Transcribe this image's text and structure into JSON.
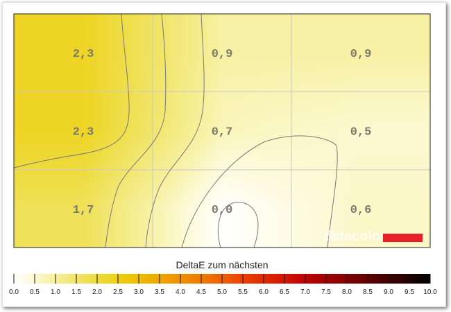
{
  "chart_data": {
    "type": "heatmap",
    "title": "DeltaE zum nächsten",
    "rows": 3,
    "cols": 3,
    "values": [
      [
        2.3,
        0.9,
        0.9
      ],
      [
        2.3,
        0.7,
        0.5
      ],
      [
        1.7,
        0.0,
        0.6
      ]
    ],
    "labels": [
      [
        "2,3",
        "0,9",
        "0,9"
      ],
      [
        "2,3",
        "0,7",
        "0,5"
      ],
      [
        "1,7",
        "0,0",
        "0,6"
      ]
    ],
    "colorbar": {
      "range": [
        0,
        10
      ],
      "ticks": [
        "0.0",
        "0.5",
        "1.0",
        "1.5",
        "2.0",
        "2.5",
        "3.0",
        "3.5",
        "4.0",
        "4.5",
        "5.0",
        "5.5",
        "6.0",
        "6.5",
        "7.0",
        "7.5",
        "8.0",
        "8.5",
        "9.0",
        "9.5",
        "10.0"
      ],
      "stops": [
        [
          0,
          "#ffffff"
        ],
        [
          0.5,
          "#fcf9d2"
        ],
        [
          1,
          "#f6ef9a"
        ],
        [
          1.5,
          "#f1e56c"
        ],
        [
          2,
          "#eedb3e"
        ],
        [
          2.5,
          "#eecf12"
        ],
        [
          3,
          "#eebd00"
        ],
        [
          3.5,
          "#eea600"
        ],
        [
          4,
          "#ee9000"
        ],
        [
          4.5,
          "#ee7a00"
        ],
        [
          5,
          "#ee6000"
        ],
        [
          5.5,
          "#ec4000"
        ],
        [
          6,
          "#e02a00"
        ],
        [
          6.5,
          "#d21500"
        ],
        [
          7,
          "#c00000"
        ],
        [
          7.5,
          "#a00000"
        ],
        [
          8,
          "#800000"
        ],
        [
          8.5,
          "#600000"
        ],
        [
          9,
          "#400000"
        ],
        [
          9.5,
          "#200000"
        ],
        [
          10,
          "#000000"
        ]
      ]
    },
    "grid": true
  },
  "watermark": "datacolor",
  "watermark_color": "#e8202a"
}
